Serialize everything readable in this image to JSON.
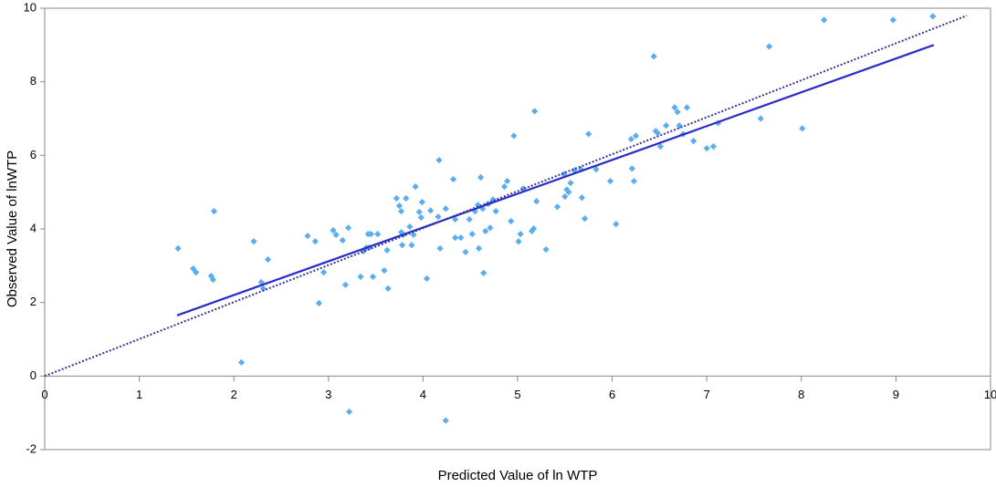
{
  "chart_data": {
    "type": "scatter",
    "xlabel": "Predicted Value of ln WTP",
    "ylabel": "Observed Value of lnWTP",
    "xlim": [
      0,
      10
    ],
    "ylim": [
      -2,
      10
    ],
    "xticks": [
      0,
      1,
      2,
      3,
      4,
      5,
      6,
      7,
      8,
      9,
      10
    ],
    "yticks": [
      -2,
      0,
      2,
      4,
      6,
      8,
      10
    ],
    "series": [
      {
        "style": "marker",
        "color": "#5aaef0",
        "x": [
          1.41,
          1.57,
          1.6,
          1.76,
          1.78,
          1.79,
          2.08,
          2.21,
          2.29,
          2.31,
          2.36,
          2.78,
          2.86,
          2.9,
          2.95,
          3.05,
          3.08,
          3.15,
          3.18,
          3.21,
          3.22,
          3.34,
          3.37,
          3.4,
          3.42,
          3.43,
          3.45,
          3.47,
          3.52,
          3.59,
          3.62,
          3.63,
          3.72,
          3.75,
          3.77,
          3.77,
          3.78,
          3.79,
          3.82,
          3.86,
          3.88,
          3.9,
          3.92,
          3.96,
          3.98,
          3.99,
          4.04,
          4.08,
          4.16,
          4.17,
          4.18,
          4.24,
          4.24,
          4.32,
          4.34,
          4.34,
          4.4,
          4.45,
          4.49,
          4.52,
          4.55,
          4.58,
          4.59,
          4.61,
          4.63,
          4.64,
          4.66,
          4.69,
          4.71,
          4.74,
          4.77,
          4.86,
          4.89,
          4.93,
          4.96,
          5.01,
          5.03,
          5.06,
          5.15,
          5.17,
          5.18,
          5.2,
          5.3,
          5.42,
          5.49,
          5.5,
          5.52,
          5.54,
          5.56,
          5.6,
          5.67,
          5.68,
          5.71,
          5.75,
          5.83,
          5.98,
          6.04,
          6.2,
          6.25,
          6.21,
          6.23,
          6.44,
          6.46,
          6.48,
          6.51,
          6.57,
          6.66,
          6.69,
          6.71,
          6.75,
          6.79,
          6.86,
          7.0,
          7.07,
          7.12,
          7.57,
          7.66,
          8.01,
          8.24,
          8.97,
          9.39
        ],
        "values": [
          3.47,
          2.92,
          2.82,
          2.72,
          2.62,
          4.48,
          0.37,
          3.66,
          2.55,
          2.38,
          3.17,
          3.81,
          3.66,
          1.98,
          2.82,
          3.96,
          3.84,
          3.69,
          2.48,
          4.03,
          -0.97,
          2.7,
          3.39,
          3.49,
          3.86,
          3.49,
          3.86,
          2.7,
          3.86,
          2.87,
          3.42,
          2.38,
          4.83,
          4.63,
          3.91,
          4.48,
          3.56,
          3.84,
          4.83,
          4.06,
          3.56,
          3.84,
          5.15,
          4.46,
          4.31,
          4.73,
          2.65,
          4.5,
          4.33,
          5.87,
          3.47,
          4.55,
          -1.21,
          5.35,
          4.26,
          3.76,
          3.76,
          3.37,
          4.26,
          3.86,
          4.48,
          4.65,
          3.47,
          5.4,
          4.55,
          2.8,
          3.94,
          4.68,
          4.03,
          4.8,
          4.48,
          5.15,
          5.3,
          4.21,
          6.53,
          3.66,
          3.86,
          5.1,
          3.94,
          4.01,
          7.2,
          4.75,
          3.44,
          4.6,
          5.49,
          4.88,
          5.07,
          5.0,
          5.25,
          5.59,
          5.62,
          4.85,
          4.28,
          6.58,
          5.62,
          5.3,
          4.13,
          6.44,
          6.53,
          5.64,
          5.3,
          8.69,
          6.66,
          6.61,
          6.24,
          6.81,
          7.3,
          7.18,
          6.81,
          6.58,
          7.3,
          6.39,
          6.19,
          6.24,
          6.88,
          7.0,
          8.96,
          6.73,
          9.68,
          9.68,
          9.78
        ]
      },
      {
        "style": "solid",
        "color": "#2b2bcc",
        "x": [
          1.4,
          9.4
        ],
        "values": [
          1.65,
          9.0
        ]
      },
      {
        "style": "dotted",
        "color": "#333399",
        "x": [
          0,
          9.75
        ],
        "values": [
          0,
          9.8
        ]
      }
    ]
  }
}
